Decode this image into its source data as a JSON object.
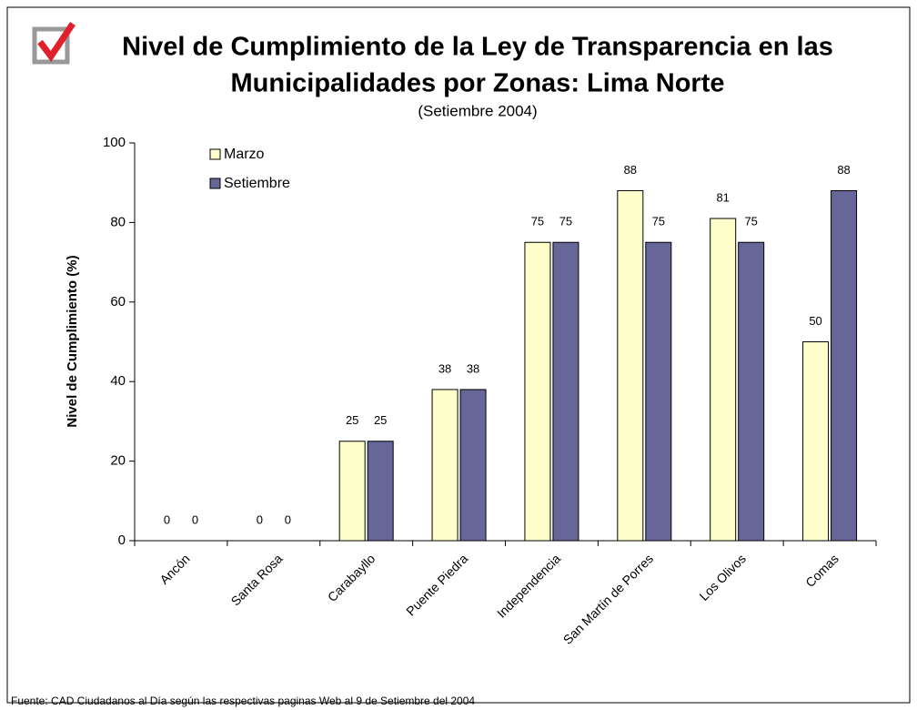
{
  "chart_data": {
    "type": "bar",
    "title": [
      "Nivel de Cumplimiento de la Ley de Transparencia en las",
      "Municipalidades por Zonas: Lima Norte"
    ],
    "subtitle": "(Setiembre 2004)",
    "y_label": "Nivel de Cumplimiento (%)",
    "footnote": "Fuente: CAD Ciudadanos al Día según las respectivas paginas Web al 9 de Setiembre del 2004",
    "categories": [
      "Ancón",
      "Santa Rosa",
      "Carabayllo",
      "Puente Piedra",
      "Independencia",
      "San Martín de Porres",
      "Los Olivos",
      "Comas"
    ],
    "series": [
      {
        "name": "Marzo",
        "color": "#ffffcc",
        "values": [
          0,
          0,
          25,
          38,
          75,
          88,
          81,
          50
        ]
      },
      {
        "name": "Setiembre",
        "color": "#666699",
        "values": [
          0,
          0,
          25,
          38,
          75,
          75,
          75,
          88
        ]
      }
    ],
    "ylim": [
      0,
      100
    ],
    "yticks": [
      0,
      20,
      40,
      60,
      80,
      100
    ],
    "grid": false,
    "legend": "top-left"
  }
}
